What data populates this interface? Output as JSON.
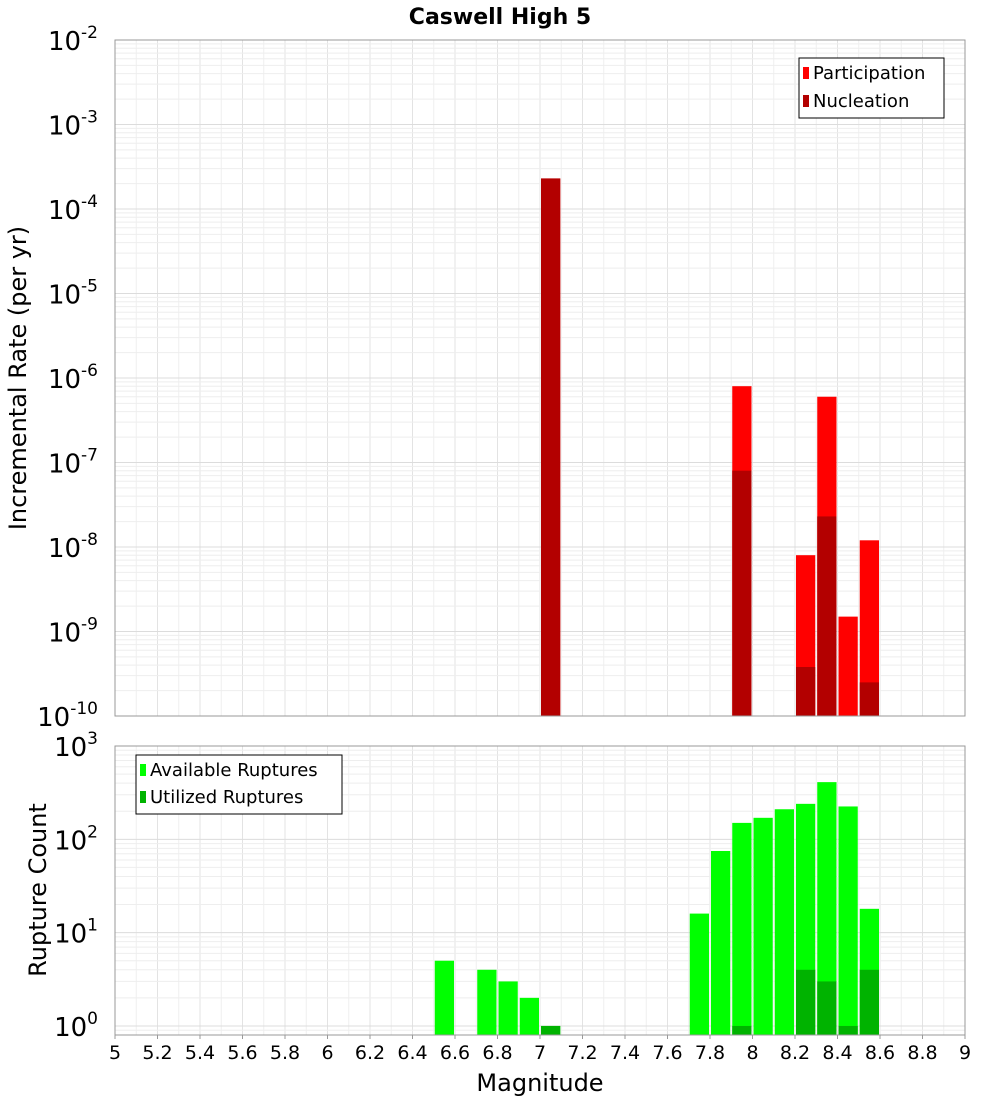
{
  "chart_data": [
    {
      "type": "bar",
      "title": "Caswell High 5",
      "xlabel": "Magnitude",
      "ylabel": "Incremental Rate (per yr)",
      "yscale": "log",
      "ylim": [
        1e-10,
        0.01
      ],
      "xlim": [
        5,
        9
      ],
      "bin_width": 0.1,
      "grid": true,
      "legend": "top-right",
      "series": [
        {
          "name": "Participation",
          "color": "#ff0000",
          "x": [
            7.05,
            7.95,
            8.25,
            8.35,
            8.45,
            8.55
          ],
          "values": [
            0.00023,
            8e-07,
            8e-09,
            6e-07,
            1.5e-09,
            1.2e-08
          ]
        },
        {
          "name": "Nucleation",
          "color": "#b30000",
          "x": [
            7.05,
            7.95,
            8.25,
            8.35,
            8.55
          ],
          "values": [
            0.00023,
            8e-08,
            3.8e-10,
            2.3e-08,
            2.5e-10
          ]
        }
      ],
      "yticks": [
        {
          "base": "10",
          "exp": "-10"
        },
        {
          "base": "10",
          "exp": "-9"
        },
        {
          "base": "10",
          "exp": "-8"
        },
        {
          "base": "10",
          "exp": "-7"
        },
        {
          "base": "10",
          "exp": "-6"
        },
        {
          "base": "10",
          "exp": "-5"
        },
        {
          "base": "10",
          "exp": "-4"
        },
        {
          "base": "10",
          "exp": "-3"
        },
        {
          "base": "10",
          "exp": "-2"
        }
      ]
    },
    {
      "type": "bar",
      "title": "",
      "xlabel": "Magnitude",
      "ylabel": "Rupture Count",
      "yscale": "log",
      "ylim": [
        0.8,
        1000
      ],
      "xlim": [
        5,
        9
      ],
      "bin_width": 0.1,
      "grid": true,
      "legend": "top-left",
      "series": [
        {
          "name": "Available Ruptures",
          "color": "#00ff00",
          "x": [
            6.55,
            6.75,
            6.85,
            6.95,
            7.05,
            7.75,
            7.85,
            7.95,
            8.05,
            8.15,
            8.25,
            8.35,
            8.45,
            8.55
          ],
          "values": [
            5,
            4,
            3,
            2,
            1,
            16,
            75,
            150,
            170,
            210,
            240,
            410,
            225,
            18
          ]
        },
        {
          "name": "Utilized Ruptures",
          "color": "#00b300",
          "x": [
            7.05,
            7.95,
            8.25,
            8.35,
            8.45,
            8.55
          ],
          "values": [
            1,
            1,
            4,
            3,
            1,
            4
          ]
        }
      ],
      "yticks": [
        {
          "base": "10",
          "exp": "0"
        },
        {
          "base": "10",
          "exp": "1"
        },
        {
          "base": "10",
          "exp": "2"
        },
        {
          "base": "10",
          "exp": "3"
        }
      ],
      "xticks": [
        "5",
        "5.2",
        "5.4",
        "5.6",
        "5.8",
        "6",
        "6.2",
        "6.4",
        "6.6",
        "6.8",
        "7",
        "7.2",
        "7.4",
        "7.6",
        "7.8",
        "8",
        "8.2",
        "8.4",
        "8.6",
        "8.8",
        "9"
      ]
    }
  ]
}
